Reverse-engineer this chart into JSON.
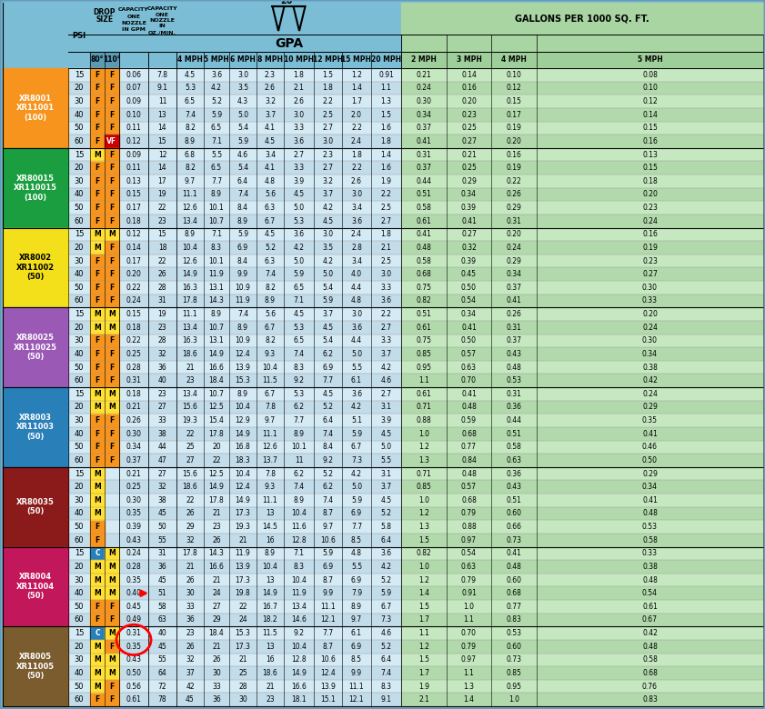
{
  "header_bg": "#7bbdd4",
  "gallons_header_bg": "#a8d5a2",
  "gallons_row_colors": [
    "#c5e8c0",
    "#b2d9ac"
  ],
  "gpa_row_colors": [
    "#d4eaf5",
    "#c2dcea"
  ],
  "row_groups": [
    {
      "label": "XR8001\nXR11001\n(100)",
      "color": "#f7941d",
      "text_color": "#ffffff"
    },
    {
      "label": "XR80015\nXR110015\n(100)",
      "color": "#1a9e3f",
      "text_color": "#ffffff"
    },
    {
      "label": "XR8002\nXR11002\n(50)",
      "color": "#f4e01a",
      "text_color": "#000000"
    },
    {
      "label": "XR80025\nXR110025\n(50)",
      "color": "#9b59b6",
      "text_color": "#ffffff"
    },
    {
      "label": "XR8003\nXR11003\n(50)",
      "color": "#2980b9",
      "text_color": "#ffffff"
    },
    {
      "label": "XR80035\n(50)",
      "color": "#8B1a1a",
      "text_color": "#ffffff"
    },
    {
      "label": "XR8004\nXR11004\n(50)",
      "color": "#c2185b",
      "text_color": "#ffffff"
    },
    {
      "label": "XR8005\nXR11005\n(50)",
      "color": "#7a5c2e",
      "text_color": "#ffffff"
    }
  ],
  "psi_values": [
    15,
    20,
    30,
    40,
    50,
    60
  ],
  "drop_size_80": [
    "F",
    "F",
    "F",
    "F",
    "F",
    "F",
    "M",
    "F",
    "F",
    "F",
    "F",
    "F",
    "M",
    "M",
    "F",
    "F",
    "F",
    "F",
    "M",
    "M",
    "F",
    "F",
    "F",
    "F",
    "M",
    "M",
    "F",
    "F",
    "F",
    "F",
    "M",
    "M",
    "M",
    "M",
    "F",
    "F",
    "C",
    "M",
    "M",
    "M",
    "F",
    "F",
    "C",
    "M",
    "M",
    "M",
    "M",
    "F"
  ],
  "drop_size_110": [
    "F",
    "F",
    "F",
    "F",
    "F",
    "VF",
    "F",
    "F",
    "F",
    "F",
    "F",
    "F",
    "M",
    "F",
    "F",
    "F",
    "F",
    "F",
    "M",
    "M",
    "F",
    "F",
    "F",
    "F",
    "M",
    "M",
    "F",
    "F",
    "F",
    "F",
    "",
    "",
    "",
    "",
    "",
    "",
    "M",
    "M",
    "M",
    "M",
    "F",
    "F",
    "M",
    "F",
    "M",
    "M",
    "F",
    "F"
  ],
  "cap_gpm": [
    0.061,
    0.071,
    0.087,
    0.1,
    0.11,
    0.12,
    0.092,
    0.11,
    0.13,
    0.15,
    0.17,
    0.18,
    0.12,
    0.14,
    0.17,
    0.2,
    0.22,
    0.24,
    0.15,
    0.18,
    0.22,
    0.25,
    0.28,
    0.31,
    0.18,
    0.21,
    0.26,
    0.3,
    0.34,
    0.37,
    0.21,
    0.25,
    0.3,
    0.35,
    0.39,
    0.43,
    0.24,
    0.28,
    0.35,
    0.4,
    0.45,
    0.49,
    0.31,
    0.35,
    0.43,
    0.5,
    0.56,
    0.61
  ],
  "cap_oz": [
    7.8,
    9.1,
    11,
    13,
    14,
    15,
    12,
    14,
    17,
    19,
    22,
    23,
    15,
    18,
    22,
    26,
    28,
    31,
    19,
    23,
    28,
    32,
    36,
    40,
    23,
    27,
    33,
    38,
    44,
    47,
    27,
    32,
    38,
    45,
    50,
    55,
    31,
    36,
    45,
    51,
    58,
    63,
    40,
    45,
    55,
    64,
    72,
    78
  ],
  "gpa_4": [
    4.5,
    5.3,
    6.5,
    7.4,
    8.2,
    8.9,
    6.8,
    8.2,
    9.7,
    11.1,
    12.6,
    13.4,
    8.9,
    10.4,
    12.6,
    14.9,
    16.3,
    17.8,
    11.1,
    13.4,
    16.3,
    18.6,
    21,
    23,
    13.4,
    15.6,
    19.3,
    22,
    25,
    27,
    15.6,
    18.6,
    22,
    26,
    29,
    32,
    17.8,
    21,
    26,
    30,
    33,
    36,
    23,
    26,
    32,
    37,
    42,
    45
  ],
  "gpa_5": [
    3.6,
    4.2,
    5.2,
    5.9,
    6.5,
    7.1,
    5.5,
    6.5,
    7.7,
    8.9,
    10.1,
    10.7,
    7.1,
    8.3,
    10.1,
    11.9,
    13.1,
    14.3,
    8.9,
    10.7,
    13.1,
    14.9,
    16.6,
    18.4,
    10.7,
    12.5,
    15.4,
    17.8,
    20,
    22,
    12.5,
    14.9,
    17.8,
    21,
    23,
    26,
    14.3,
    16.6,
    21,
    24,
    27,
    29,
    18.4,
    21,
    26,
    30,
    33,
    36
  ],
  "gpa_6": [
    3.0,
    3.5,
    4.3,
    5.0,
    5.4,
    5.9,
    4.6,
    5.4,
    6.4,
    7.4,
    8.4,
    8.9,
    5.9,
    6.9,
    8.4,
    9.9,
    10.9,
    11.9,
    7.4,
    8.9,
    10.9,
    12.4,
    13.9,
    15.3,
    8.9,
    10.4,
    12.9,
    14.9,
    16.8,
    18.3,
    10.4,
    12.4,
    14.9,
    17.3,
    19.3,
    21,
    11.9,
    13.9,
    17.3,
    19.8,
    22,
    24,
    15.3,
    17.3,
    21,
    25,
    28,
    30
  ],
  "gpa_8": [
    2.3,
    2.6,
    3.2,
    3.7,
    4.1,
    4.5,
    3.4,
    4.1,
    4.8,
    5.6,
    6.3,
    6.7,
    4.5,
    5.2,
    6.3,
    7.4,
    8.2,
    8.9,
    5.6,
    6.7,
    8.2,
    9.3,
    10.4,
    11.5,
    6.7,
    7.8,
    9.7,
    11.1,
    12.6,
    13.7,
    7.8,
    9.3,
    11.1,
    13.0,
    14.5,
    16.0,
    8.9,
    10.4,
    13.0,
    14.9,
    16.7,
    18.2,
    11.5,
    13.0,
    16.0,
    18.6,
    21,
    23
  ],
  "gpa_10": [
    1.8,
    2.1,
    2.6,
    3.0,
    3.3,
    3.6,
    2.7,
    3.3,
    3.9,
    4.5,
    5.0,
    5.3,
    3.6,
    4.2,
    5.0,
    5.9,
    6.5,
    7.1,
    4.5,
    5.3,
    6.5,
    7.4,
    8.3,
    9.2,
    5.3,
    6.2,
    7.7,
    8.9,
    10.1,
    11.0,
    6.2,
    7.4,
    8.9,
    10.4,
    11.6,
    12.8,
    7.1,
    8.3,
    10.4,
    11.9,
    13.4,
    14.6,
    9.2,
    10.4,
    12.8,
    14.9,
    16.6,
    18.1
  ],
  "gpa_12": [
    1.5,
    1.8,
    2.2,
    2.5,
    2.7,
    3.0,
    2.3,
    2.7,
    3.2,
    3.7,
    4.2,
    4.5,
    3.0,
    3.5,
    4.2,
    5.0,
    5.4,
    5.9,
    3.7,
    4.5,
    5.4,
    6.2,
    6.9,
    7.7,
    4.5,
    5.2,
    6.4,
    7.4,
    8.4,
    9.2,
    5.2,
    6.2,
    7.4,
    8.7,
    9.7,
    10.6,
    5.9,
    6.9,
    8.7,
    9.9,
    11.1,
    12.1,
    7.7,
    8.7,
    10.6,
    12.4,
    13.9,
    15.1
  ],
  "gpa_15": [
    1.2,
    1.4,
    1.7,
    2.0,
    2.2,
    2.4,
    1.8,
    2.2,
    2.6,
    3.0,
    3.4,
    3.6,
    2.4,
    2.8,
    3.4,
    4.0,
    4.4,
    4.8,
    3.0,
    3.6,
    4.4,
    5.0,
    5.5,
    6.1,
    3.6,
    4.2,
    5.1,
    5.9,
    6.7,
    7.3,
    4.2,
    5.0,
    5.9,
    6.9,
    7.7,
    8.5,
    4.8,
    5.5,
    6.9,
    7.9,
    8.9,
    9.7,
    6.1,
    6.9,
    8.5,
    9.9,
    11.1,
    12.1
  ],
  "gpa_20": [
    0.91,
    1.1,
    1.3,
    1.5,
    1.6,
    1.8,
    1.4,
    1.6,
    1.9,
    2.2,
    2.5,
    2.7,
    1.8,
    2.1,
    2.5,
    3.0,
    3.3,
    3.6,
    2.2,
    2.7,
    3.3,
    3.7,
    4.2,
    4.6,
    2.7,
    3.1,
    3.9,
    4.5,
    5.0,
    5.5,
    3.1,
    3.7,
    4.5,
    5.2,
    5.8,
    6.4,
    3.6,
    4.2,
    5.2,
    5.9,
    6.7,
    7.3,
    4.6,
    5.2,
    6.4,
    7.4,
    8.3,
    9.1
  ],
  "gal_2": [
    0.21,
    0.24,
    0.3,
    0.34,
    0.37,
    0.41,
    0.31,
    0.37,
    0.44,
    0.51,
    0.58,
    0.61,
    0.41,
    0.48,
    0.58,
    0.68,
    0.75,
    0.82,
    0.51,
    0.61,
    0.75,
    0.85,
    0.95,
    1.1,
    0.61,
    0.71,
    0.88,
    1.0,
    1.2,
    1.3,
    0.71,
    0.85,
    1.0,
    1.2,
    1.3,
    1.5,
    0.82,
    1.0,
    1.2,
    1.4,
    1.5,
    1.7,
    1.1,
    1.2,
    1.5,
    1.7,
    1.9,
    2.1
  ],
  "gal_3": [
    0.14,
    0.16,
    0.2,
    0.23,
    0.25,
    0.27,
    0.21,
    0.25,
    0.29,
    0.34,
    0.39,
    0.41,
    0.27,
    0.32,
    0.39,
    0.45,
    0.5,
    0.54,
    0.34,
    0.41,
    0.5,
    0.57,
    0.63,
    0.7,
    0.41,
    0.48,
    0.59,
    0.68,
    0.77,
    0.84,
    0.48,
    0.57,
    0.68,
    0.79,
    0.88,
    0.97,
    0.54,
    0.63,
    0.79,
    0.91,
    1.0,
    1.1,
    0.7,
    0.79,
    0.97,
    1.1,
    1.3,
    1.4
  ],
  "gal_4": [
    0.1,
    0.12,
    0.15,
    0.17,
    0.19,
    0.2,
    0.16,
    0.19,
    0.22,
    0.26,
    0.29,
    0.31,
    0.2,
    0.24,
    0.29,
    0.34,
    0.37,
    0.41,
    0.26,
    0.31,
    0.37,
    0.43,
    0.48,
    0.53,
    0.31,
    0.36,
    0.44,
    0.51,
    0.58,
    0.63,
    0.36,
    0.43,
    0.51,
    0.6,
    0.66,
    0.73,
    0.41,
    0.48,
    0.6,
    0.68,
    0.77,
    0.83,
    0.53,
    0.6,
    0.73,
    0.85,
    0.95,
    1.0
  ],
  "gal_5": [
    0.08,
    0.1,
    0.12,
    0.14,
    0.15,
    0.16,
    0.13,
    0.15,
    0.18,
    0.2,
    0.23,
    0.24,
    0.16,
    0.19,
    0.23,
    0.27,
    0.3,
    0.33,
    0.2,
    0.24,
    0.3,
    0.34,
    0.38,
    0.42,
    0.24,
    0.29,
    0.35,
    0.41,
    0.46,
    0.5,
    0.29,
    0.34,
    0.41,
    0.48,
    0.53,
    0.58,
    0.33,
    0.38,
    0.48,
    0.54,
    0.61,
    0.67,
    0.42,
    0.48,
    0.58,
    0.68,
    0.76,
    0.83
  ],
  "col_x": {
    "label_l": 3,
    "label_r": 75,
    "psi_l": 75,
    "psi_r": 99,
    "d80_l": 99,
    "d80_r": 115,
    "d110_l": 115,
    "d110_r": 131,
    "cgpm_l": 131,
    "cgpm_r": 163,
    "coz_l": 163,
    "coz_r": 194,
    "g4_l": 194,
    "g4_r": 224,
    "g5_l": 224,
    "g5_r": 252,
    "g6_l": 252,
    "g6_r": 282,
    "g8_l": 282,
    "g8_r": 312,
    "g10_l": 312,
    "g10_r": 345,
    "g12_l": 345,
    "g12_r": 376,
    "g15_l": 376,
    "g15_r": 408,
    "g20_l": 408,
    "g20_r": 441,
    "gl2_l": 441,
    "gl2_r": 491,
    "gl3_l": 491,
    "gl3_r": 540,
    "gl4_l": 540,
    "gl4_r": 590,
    "gl5_l": 590,
    "gl5_r": 839
  }
}
